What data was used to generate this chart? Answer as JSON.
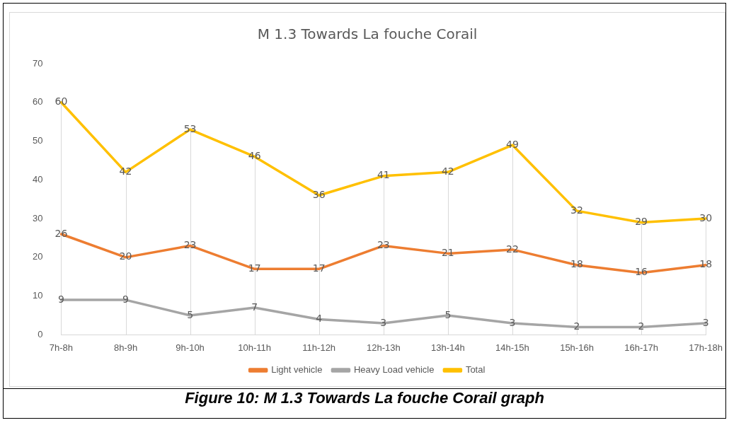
{
  "chart_data": {
    "type": "line",
    "title": "M 1.3 Towards La fouche Corail",
    "categories": [
      "7h-8h",
      "8h-9h",
      "9h-10h",
      "10h-11h",
      "11h-12h",
      "12h-13h",
      "13h-14h",
      "14h-15h",
      "15h-16h",
      "16h-17h",
      "17h-18h"
    ],
    "series": [
      {
        "name": "Light vehicle",
        "color": "#ed7d31",
        "values": [
          26,
          20,
          23,
          17,
          17,
          23,
          21,
          22,
          18,
          16,
          18
        ]
      },
      {
        "name": "Heavy Load vehicle",
        "color": "#a5a5a5",
        "values": [
          9,
          9,
          5,
          7,
          4,
          3,
          5,
          3,
          2,
          2,
          3
        ]
      },
      {
        "name": "Total",
        "color": "#ffc000",
        "values": [
          60,
          42,
          53,
          46,
          36,
          41,
          42,
          49,
          32,
          29,
          30
        ]
      }
    ],
    "ylim": [
      0,
      70
    ],
    "yticks": [
      0,
      10,
      20,
      30,
      40,
      50,
      60,
      70
    ],
    "grid": "x",
    "legend": "bottom",
    "marker": "none",
    "line_style": "solid",
    "data_labels": true,
    "annotations": [
      "Figure 10: M 1.3 Towards La fouche Corail graph"
    ]
  }
}
